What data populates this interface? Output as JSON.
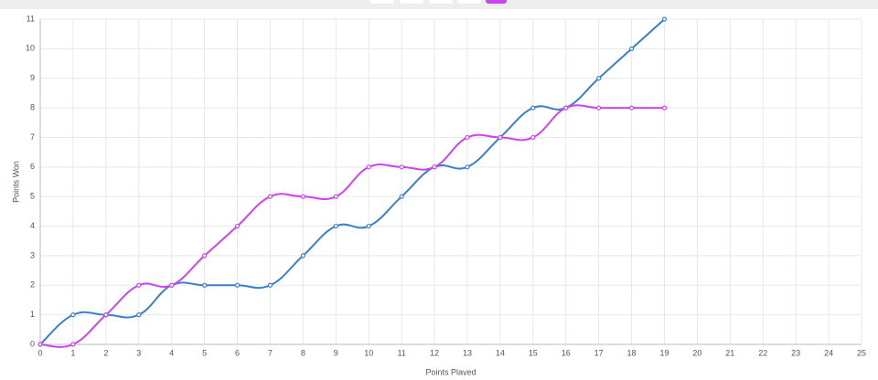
{
  "chart_data": {
    "type": "line",
    "x_label": "Points Played",
    "y_label": "Points Won",
    "x": [
      0,
      1,
      2,
      3,
      4,
      5,
      6,
      7,
      8,
      9,
      10,
      11,
      12,
      13,
      14,
      15,
      16,
      17,
      18,
      19
    ],
    "series": [
      {
        "color": "#3a7fcc",
        "values": [
          0,
          1,
          1,
          1,
          2,
          2,
          2,
          2,
          3,
          4,
          4,
          5,
          6,
          6,
          7,
          8,
          8,
          9,
          10,
          11
        ]
      },
      {
        "color": "#cc44ee",
        "values": [
          0,
          0,
          1,
          2,
          2,
          3,
          4,
          5,
          5,
          5,
          6,
          6,
          6,
          7,
          7,
          7,
          8,
          8,
          8,
          8
        ]
      }
    ],
    "xlim": [
      0,
      25
    ],
    "xticks": [
      0,
      1,
      2,
      3,
      4,
      5,
      6,
      7,
      8,
      9,
      10,
      11,
      12,
      13,
      14,
      15,
      16,
      17,
      18,
      19,
      20,
      21,
      22,
      23,
      24,
      25
    ],
    "ylim": [
      0,
      11
    ],
    "yticks": [
      0,
      1,
      2,
      3,
      4,
      5,
      6,
      7,
      8,
      9,
      10,
      11
    ],
    "grid": true
  }
}
